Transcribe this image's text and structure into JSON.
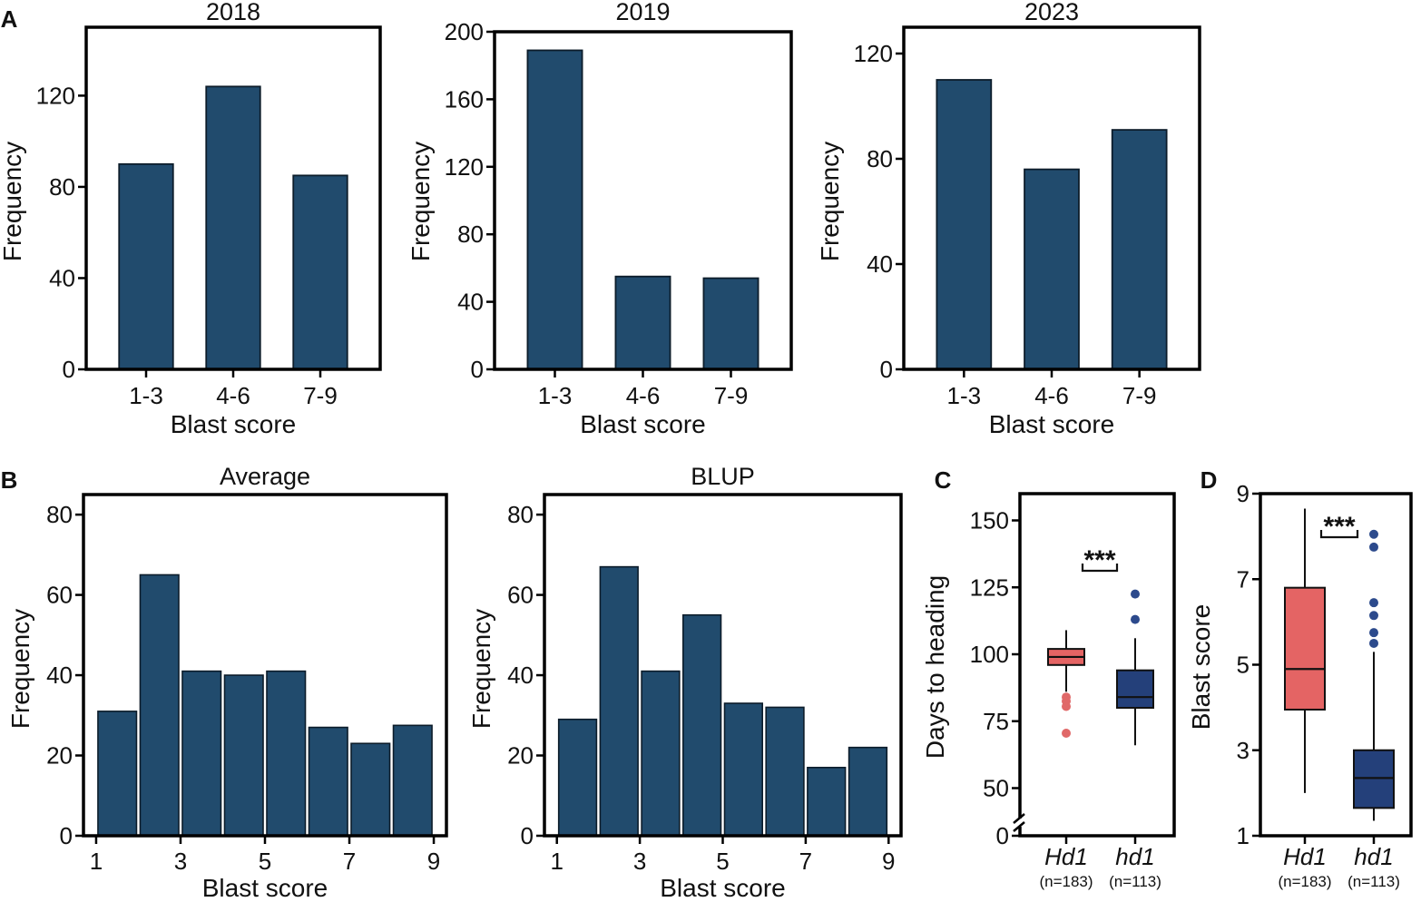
{
  "panel_labels": [
    "A",
    "B",
    "C",
    "D"
  ],
  "colors": {
    "bar_fill": "#214b6d",
    "frame": "#000000",
    "hd1_box": "#e46464",
    "hd1_outlier": "#e06868",
    "hd1_mutant_box": "#24407a",
    "hd1_mutant_outlier": "#2c4a8c"
  },
  "chart_data": [
    {
      "type": "bar",
      "panel": "A",
      "title": "2018",
      "xlabel": "Blast score",
      "ylabel": "Frequency",
      "categories": [
        "1-3",
        "4-6",
        "7-9"
      ],
      "values": [
        90,
        124,
        85
      ],
      "ylim": [
        0,
        150
      ],
      "yticks": [
        0,
        40,
        80,
        120
      ]
    },
    {
      "type": "bar",
      "panel": "A",
      "title": "2019",
      "xlabel": "Blast score",
      "ylabel": "Frequency",
      "categories": [
        "1-3",
        "4-6",
        "7-9"
      ],
      "values": [
        189,
        55,
        54
      ],
      "ylim": [
        0,
        200
      ],
      "yticks": [
        0,
        40,
        80,
        120,
        160,
        200
      ]
    },
    {
      "type": "bar",
      "panel": "A",
      "title": "2023",
      "xlabel": "Blast score",
      "ylabel": "Frequency",
      "categories": [
        "1-3",
        "4-6",
        "7-9"
      ],
      "values": [
        110,
        76,
        91
      ],
      "ylim": [
        0,
        130
      ],
      "yticks": [
        0,
        40,
        80,
        120
      ]
    },
    {
      "type": "bar",
      "panel": "B",
      "title": "Average",
      "xlabel": "Blast score",
      "ylabel": "Frequency",
      "bins": [
        {
          "from": 1,
          "to": 2,
          "count": 31
        },
        {
          "from": 2,
          "to": 3,
          "count": 65
        },
        {
          "from": 3,
          "to": 4,
          "count": 41
        },
        {
          "from": 4,
          "to": 5,
          "count": 40
        },
        {
          "from": 5,
          "to": 6,
          "count": 41
        },
        {
          "from": 6,
          "to": 7,
          "count": 27
        },
        {
          "from": 7,
          "to": 8,
          "count": 23
        },
        {
          "from": 8,
          "to": 9,
          "count": 27.5
        }
      ],
      "xlim": [
        0.7,
        9.3
      ],
      "xticks": [
        1,
        3,
        5,
        7,
        9
      ],
      "ylim": [
        0,
        85
      ],
      "yticks": [
        0,
        20,
        40,
        60,
        80
      ]
    },
    {
      "type": "bar",
      "panel": "B",
      "title": "BLUP",
      "xlabel": "Blast score",
      "ylabel": "Frequency",
      "bins": [
        {
          "from": 1,
          "to": 2,
          "count": 29
        },
        {
          "from": 2,
          "to": 3,
          "count": 67
        },
        {
          "from": 3,
          "to": 4,
          "count": 41
        },
        {
          "from": 4,
          "to": 5,
          "count": 55
        },
        {
          "from": 5,
          "to": 6,
          "count": 33
        },
        {
          "from": 6,
          "to": 7,
          "count": 32
        },
        {
          "from": 7,
          "to": 8,
          "count": 17
        },
        {
          "from": 8,
          "to": 9,
          "count": 22
        }
      ],
      "xlim": [
        0.7,
        9.3
      ],
      "xticks": [
        1,
        3,
        5,
        7,
        9
      ],
      "ylim": [
        0,
        85
      ],
      "yticks": [
        0,
        20,
        40,
        60,
        80
      ]
    },
    {
      "type": "box",
      "panel": "C",
      "ylabel": "Days to heading",
      "ylim": [
        40,
        160
      ],
      "yticks": [
        50,
        75,
        100,
        125,
        150
      ],
      "axis_break_label": "0",
      "significance": "***",
      "groups": [
        {
          "name": "Hd1",
          "n_label": "(n=183)",
          "whisker_low": 86,
          "q1": 96,
          "median": 99,
          "q3": 102,
          "whisker_high": 109,
          "outliers": [
            70.5,
            80.5,
            82.5,
            84
          ],
          "color_key": "hd1"
        },
        {
          "name": "hd1",
          "n_label": "(n=113)",
          "whisker_low": 66,
          "q1": 80,
          "median": 84,
          "q3": 94,
          "whisker_high": 106,
          "outliers": [
            113,
            122.5
          ],
          "color_key": "hd1_mutant"
        }
      ]
    },
    {
      "type": "box",
      "panel": "D",
      "ylabel": "Blast score",
      "ylim": [
        1,
        9
      ],
      "yticks": [
        1,
        3,
        5,
        7,
        9
      ],
      "significance": "***",
      "groups": [
        {
          "name": "Hd1",
          "n_label": "(n=183)",
          "whisker_low": 2,
          "q1": 3.95,
          "median": 4.9,
          "q3": 6.8,
          "whisker_high": 8.65,
          "outliers": [],
          "color_key": "hd1"
        },
        {
          "name": "hd1",
          "n_label": "(n=113)",
          "whisker_low": 1.35,
          "q1": 1.65,
          "median": 2.35,
          "q3": 3.0,
          "whisker_high": 5.3,
          "outliers": [
            5.5,
            5.75,
            6.15,
            6.45,
            7.75,
            8.05
          ],
          "color_key": "hd1_mutant"
        }
      ]
    }
  ]
}
